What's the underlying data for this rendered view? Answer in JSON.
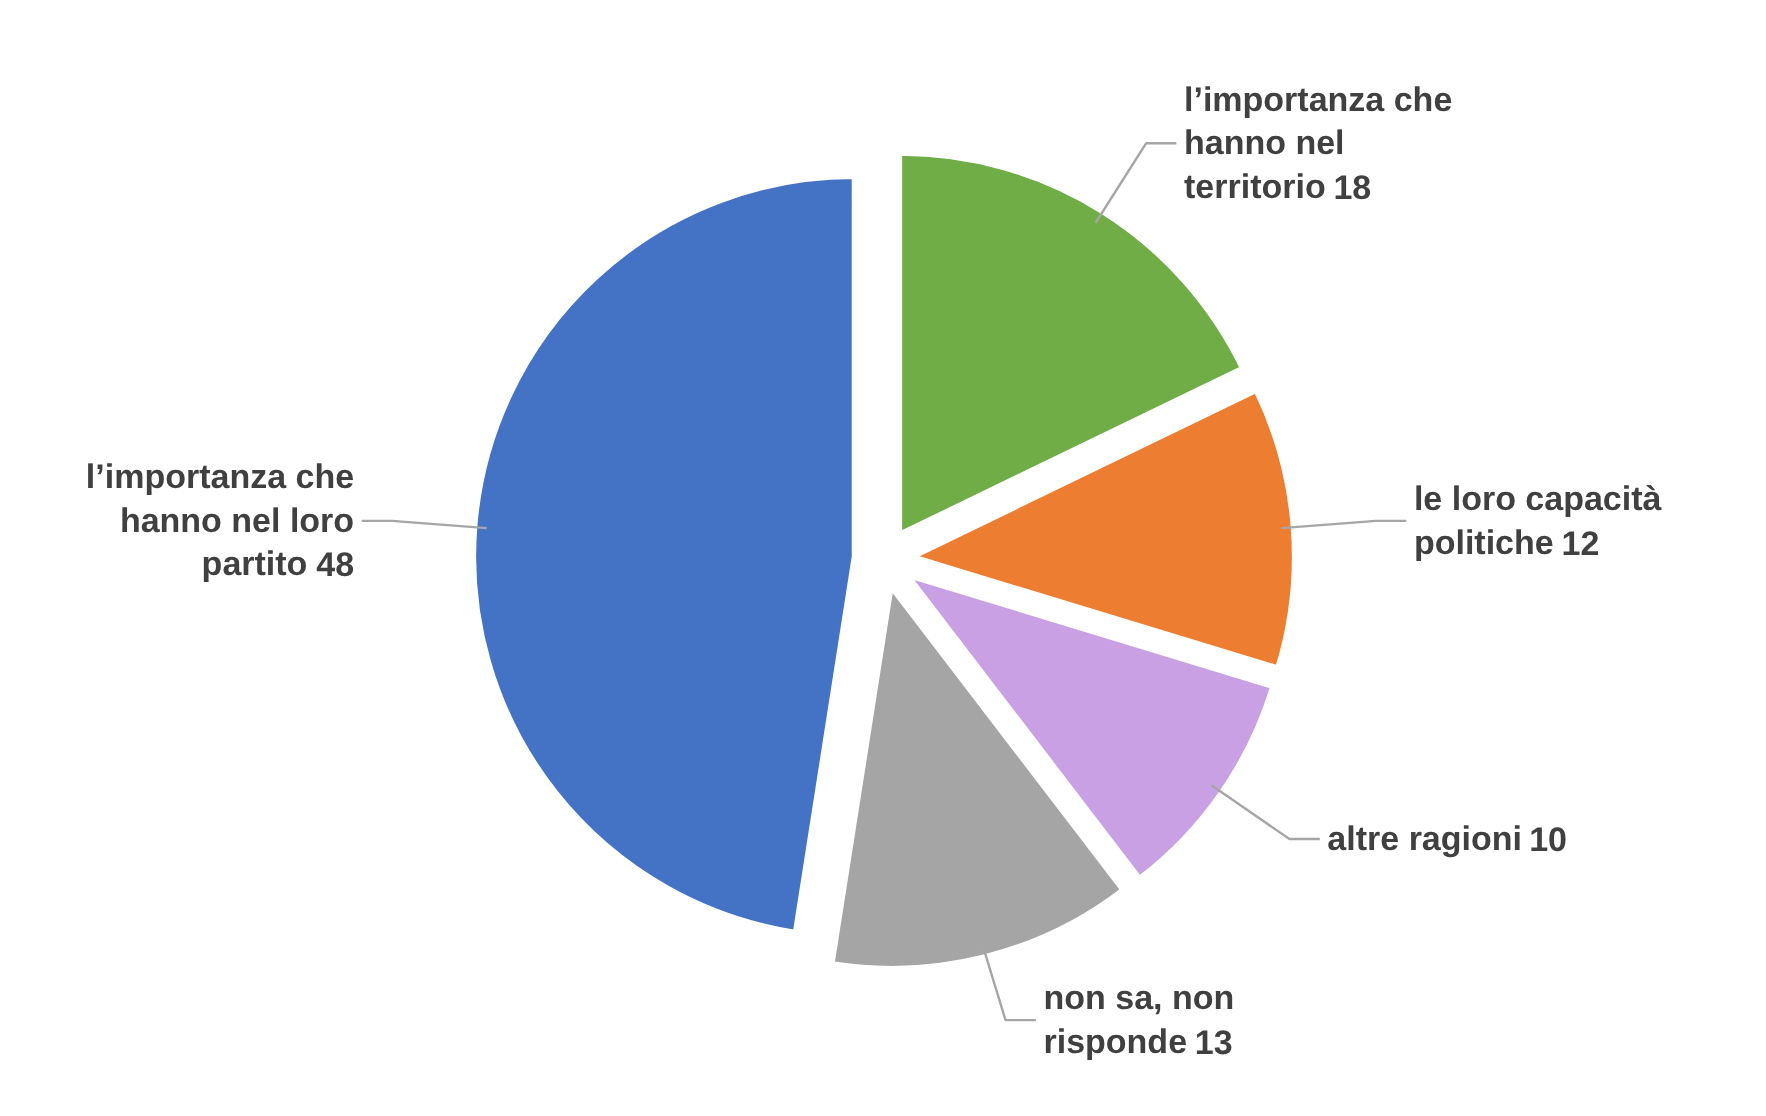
{
  "chart_data": {
    "type": "pie",
    "categories": [
      "l’importanza che hanno nel territorio",
      "le loro capacità politiche",
      "altre ragioni",
      "non sa, non risponde",
      "l’importanza che hanno nel loro partito"
    ],
    "values": [
      18,
      12,
      10,
      13,
      48
    ],
    "colors": [
      "#70ad47",
      "#ed7d31",
      "#c9a0e3",
      "#a5a5a5",
      "#4472c4"
    ],
    "data_labels": true
  }
}
